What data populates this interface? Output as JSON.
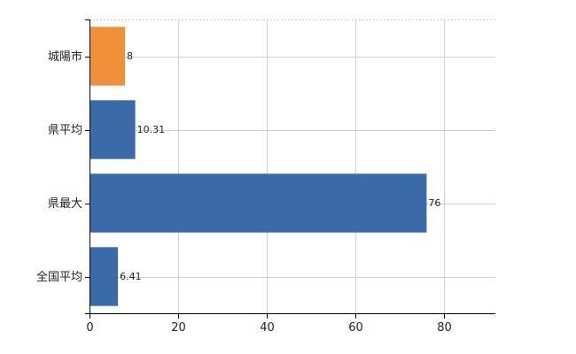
{
  "chart_data": {
    "type": "bar",
    "orientation": "horizontal",
    "categories": [
      "城陽市",
      "県平均",
      "県最大",
      "全国平均"
    ],
    "values": [
      8,
      10.31,
      76,
      6.41
    ],
    "value_labels": [
      "8",
      "10.31",
      "76",
      "6.41"
    ],
    "bar_colors": [
      "#f0913a",
      "#3a6aa8",
      "#3a6aa8",
      "#3a6aa8"
    ],
    "xlim": [
      0,
      91.5
    ],
    "xticks": [
      0,
      20,
      40,
      60,
      80
    ],
    "xtick_labels": [
      "0",
      "20",
      "40",
      "60",
      "80"
    ],
    "grid": true,
    "legend": "none",
    "title": "",
    "xlabel": "",
    "ylabel": ""
  }
}
